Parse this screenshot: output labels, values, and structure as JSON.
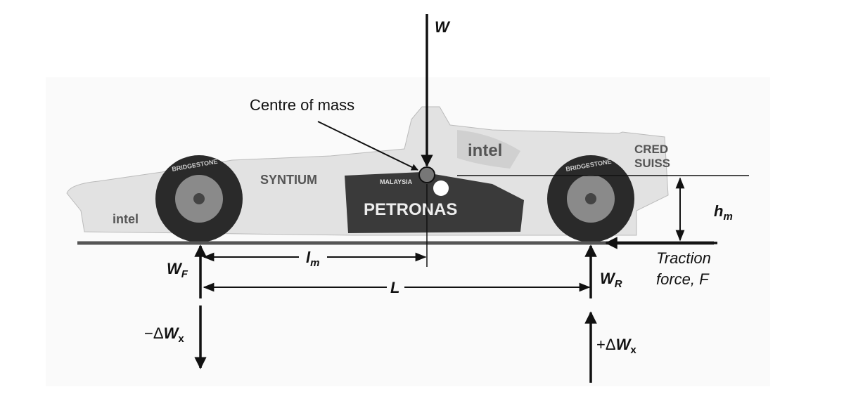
{
  "labels": {
    "weight": "W",
    "centre_of_mass": "Centre of mass",
    "front_load": {
      "main": "W",
      "sub": "F"
    },
    "rear_load": {
      "main": "W",
      "sub": "R"
    },
    "cg_distance": {
      "main": "l",
      "sub": "m"
    },
    "wheelbase": "L",
    "cg_height": {
      "main": "h",
      "sub": "m"
    },
    "traction": [
      "Traction",
      "force, F"
    ],
    "front_transfer": {
      "sign": "−",
      "delta": "Δ",
      "main": "W",
      "sub": "x"
    },
    "rear_transfer": {
      "sign": "+",
      "delta": "Δ",
      "main": "W",
      "sub": "x"
    }
  },
  "car_livery": [
    "intel",
    "SYNTIUM",
    "MALAYSIA",
    "PETRONAS",
    "intel",
    "CRED",
    "SUISS",
    "BRIDGESTONE",
    "BRIDGESTONE"
  ]
}
